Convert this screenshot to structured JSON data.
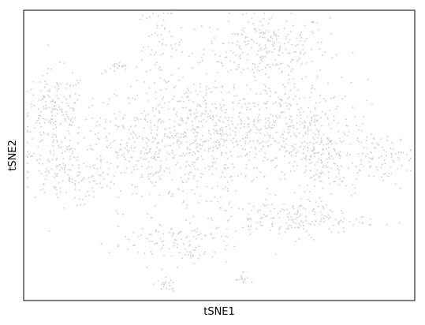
{
  "chart_data": {
    "type": "scatter",
    "title": "",
    "xlabel": "tSNE1",
    "ylabel": "tSNE2",
    "x_ticks": [],
    "y_ticks": [],
    "xlim": [
      -50,
      50
    ],
    "ylim": [
      -50,
      50
    ],
    "grid": false,
    "legend": "none",
    "point_color": "#d3d3d3",
    "clusters": [
      {
        "name": "top-right-blob",
        "center": [
          12,
          37
        ],
        "spread": [
          8,
          6
        ],
        "count": 260
      },
      {
        "name": "top-diagonal-strand",
        "center": [
          -15,
          38
        ],
        "spread": [
          3,
          7
        ],
        "count": 60
      },
      {
        "name": "small-top-left",
        "center": [
          -26,
          30
        ],
        "spread": [
          2,
          1
        ],
        "count": 20
      },
      {
        "name": "left-arc",
        "center": [
          -42,
          15
        ],
        "spread": [
          4,
          7
        ],
        "count": 170
      },
      {
        "name": "left-lower",
        "center": [
          -40,
          -6
        ],
        "spread": [
          6,
          5
        ],
        "count": 130
      },
      {
        "name": "center-left",
        "center": [
          -20,
          2
        ],
        "spread": [
          10,
          10
        ],
        "count": 320
      },
      {
        "name": "center",
        "center": [
          -2,
          8
        ],
        "spread": [
          12,
          10
        ],
        "count": 500
      },
      {
        "name": "center-right",
        "center": [
          18,
          8
        ],
        "spread": [
          10,
          9
        ],
        "count": 330
      },
      {
        "name": "right-stripe",
        "center": [
          26,
          -2
        ],
        "spread": [
          3,
          10
        ],
        "count": 120
      },
      {
        "name": "far-right",
        "center": [
          40,
          -1
        ],
        "spread": [
          5,
          4
        ],
        "count": 90
      },
      {
        "name": "bottom-right-band",
        "center": [
          18,
          -22
        ],
        "spread": [
          10,
          3
        ],
        "count": 170
      },
      {
        "name": "bottom-left-arc",
        "center": [
          -12,
          -30
        ],
        "spread": [
          8,
          4
        ],
        "count": 120
      },
      {
        "name": "bottom-small-1",
        "center": [
          -14,
          -45
        ],
        "spread": [
          1.5,
          1
        ],
        "count": 20
      },
      {
        "name": "bottom-small-2",
        "center": [
          6,
          -43
        ],
        "spread": [
          1,
          0.8
        ],
        "count": 14
      }
    ]
  }
}
